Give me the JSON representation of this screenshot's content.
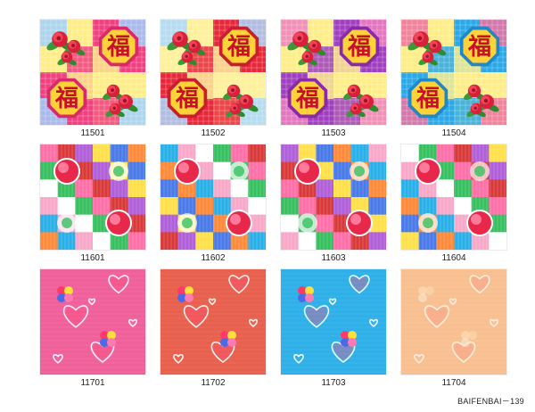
{
  "tiles": [
    {
      "code": "11501",
      "design": "fu"
    },
    {
      "code": "11502",
      "design": "fu"
    },
    {
      "code": "11503",
      "design": "fu"
    },
    {
      "code": "11504",
      "design": "fu"
    },
    {
      "code": "11601",
      "design": "checker"
    },
    {
      "code": "11602",
      "design": "checker"
    },
    {
      "code": "11603",
      "design": "checker"
    },
    {
      "code": "11604",
      "design": "checker"
    },
    {
      "code": "11701",
      "design": "hearts"
    },
    {
      "code": "11702",
      "design": "hearts"
    },
    {
      "code": "11703",
      "design": "hearts"
    },
    {
      "code": "11704",
      "design": "hearts"
    }
  ],
  "fu_char": "福",
  "footer_text": "BAIFENBAI－139",
  "colors": {
    "fu_palettes": [
      {
        "a": "#f04080",
        "b": "#ffee88",
        "c": "#9fd0ff",
        "frame": "#d82a6a"
      },
      {
        "a": "#e8283a",
        "b": "#fff09a",
        "c": "#a8d8ff",
        "frame": "#c81e2e"
      },
      {
        "a": "#a040c0",
        "b": "#ffee88",
        "c": "#f080c0",
        "frame": "#8a2aa8"
      },
      {
        "a": "#2aa8e8",
        "b": "#ffee88",
        "c": "#f070a0",
        "frame": "#1e88c8"
      }
    ],
    "hearts_bg": [
      "#f0609a",
      "#e8604e",
      "#2fb0e8",
      "#f8c090"
    ]
  }
}
